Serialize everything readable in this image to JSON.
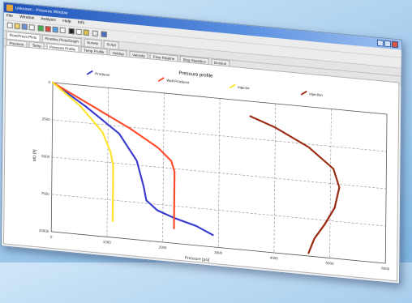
{
  "window": {
    "title": "Unknown - Pressure Window",
    "menus": [
      "File",
      "Window",
      "Analysis",
      "Help",
      "Info"
    ]
  },
  "tabs_primary": [
    "Flow/Press Plots",
    "Flowline Plots/Graph",
    "Survey",
    "Script"
  ],
  "tabs_secondary": [
    "Pressure",
    "Temp",
    "Pressure Profile",
    "Temp Profile",
    "Holdup",
    "Velocity",
    "Flow Regime",
    "Slug Statistics",
    "Erosion"
  ],
  "colors": {
    "Producer": "#3a3ad0",
    "Well Producer": "#ff4a2a",
    "Injector": "#ffe32a",
    "Injection": "#9b2c14"
  },
  "chart_data": {
    "type": "line",
    "title": "Pressure profile",
    "xlabel": "Pressure [psi]",
    "ylabel": "MD [ft]",
    "xlim": [
      0,
      6000
    ],
    "ylim": [
      10000,
      0
    ],
    "grid": true,
    "legend_placement": "top",
    "x_ticks": [
      "0",
      "1000",
      "2000",
      "3000",
      "4000",
      "5000",
      "6000"
    ],
    "y_ticks": [
      "0",
      "2500",
      "5000",
      "7500",
      "10000"
    ],
    "series": [
      {
        "name": "Producer",
        "x": [
          0,
          600,
          1200,
          1520,
          1650,
          1700,
          1900,
          2200,
          2600,
          2900
        ],
        "y": [
          0,
          1400,
          3000,
          4700,
          6400,
          7300,
          7900,
          8300,
          8700,
          9200
        ]
      },
      {
        "name": "Well Producer",
        "x": [
          0,
          700,
          1400,
          1900,
          2140,
          2200,
          2200,
          2200
        ],
        "y": [
          0,
          1300,
          2600,
          3700,
          4500,
          5200,
          7000,
          9000
        ]
      },
      {
        "name": "Injector",
        "x": [
          0,
          500,
          900,
          1050,
          1100,
          1100,
          1100
        ],
        "y": [
          0,
          1400,
          3000,
          4300,
          5200,
          7000,
          8900
        ]
      },
      {
        "name": "Injection",
        "x": [
          3550,
          4000,
          4600,
          5050,
          5160,
          5080,
          4900,
          4720,
          4620
        ],
        "y": [
          1000,
          1600,
          2700,
          4000,
          5200,
          6600,
          7800,
          8800,
          9800
        ]
      }
    ]
  }
}
